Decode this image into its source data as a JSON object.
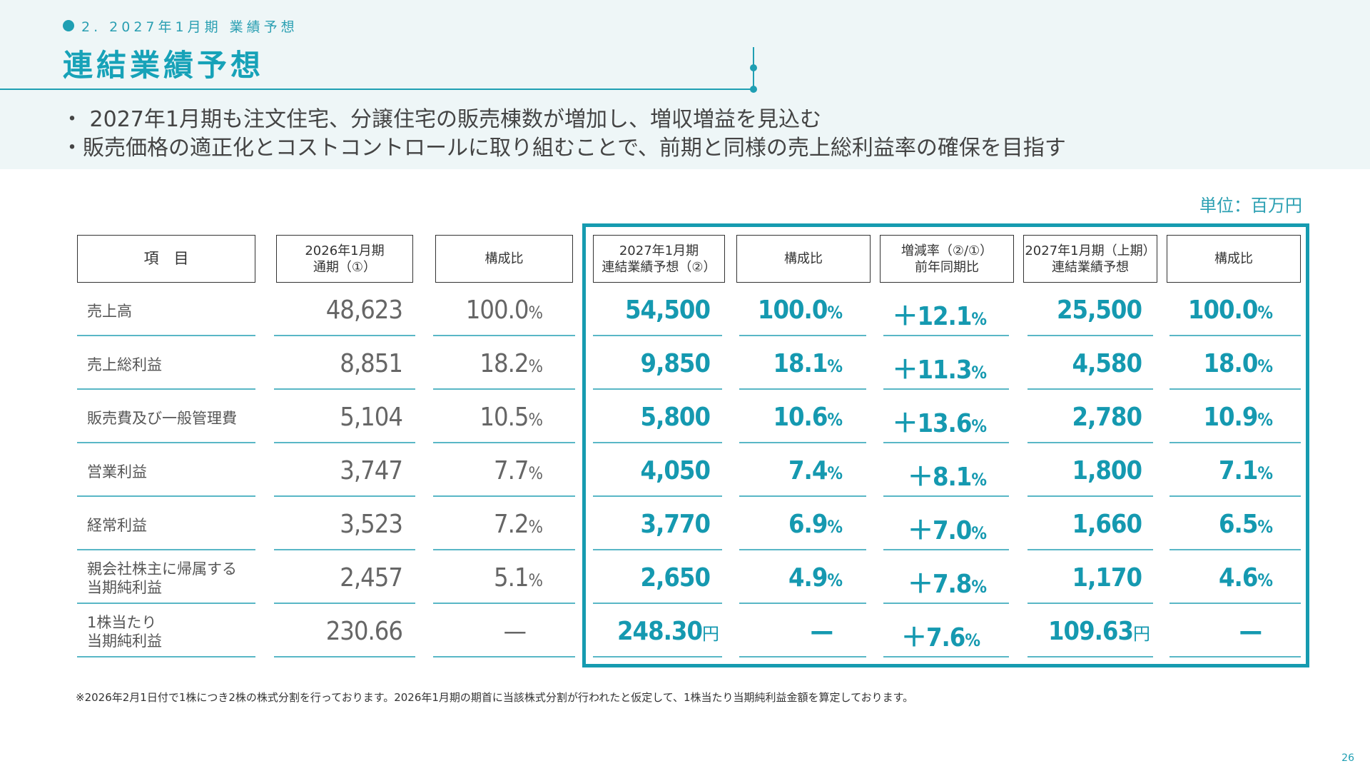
{
  "section_label": "2. 2027年1月期 業績予想",
  "page_title": "連結業績予想",
  "bullets": [
    "・ 2027年1月期も注文住宅、分譲住宅の販売棟数が増加し、増収増益を見込む",
    "・販売価格の適正化とコストコントロールに取り組むことで、前期と同様の売上総利益率の確保を目指す"
  ],
  "unit": "単位：百万円",
  "headers": {
    "item": "項　目",
    "fy2026_l1": "2026年1月期",
    "fy2026_l2": "通期（①）",
    "ratio": "構成比",
    "fy2027_l1": "2027年1月期",
    "fy2027_l2": "連結業績予想（②）",
    "growth_l1": "増減率（②/①）",
    "growth_l2": "前年同期比",
    "h1_l1": "2027年1月期（上期）",
    "h1_l2": "連結業績予想"
  },
  "rows": [
    {
      "item_l1": "売上高",
      "item_l2": "",
      "fy2026": "48,623",
      "fy2026_ratio": "100.0",
      "fy2027": "54,500",
      "fy2027_ratio": "100.0",
      "growth": "＋12.1",
      "h1": "25,500",
      "h1_ratio": "100.0"
    },
    {
      "item_l1": "売上総利益",
      "item_l2": "",
      "fy2026": "8,851",
      "fy2026_ratio": "18.2",
      "fy2027": "9,850",
      "fy2027_ratio": "18.1",
      "growth": "＋11.3",
      "h1": "4,580",
      "h1_ratio": "18.0"
    },
    {
      "item_l1": "販売費及び一般管理費",
      "item_l2": "",
      "fy2026": "5,104",
      "fy2026_ratio": "10.5",
      "fy2027": "5,800",
      "fy2027_ratio": "10.6",
      "growth": "＋13.6",
      "h1": "2,780",
      "h1_ratio": "10.9"
    },
    {
      "item_l1": "営業利益",
      "item_l2": "",
      "fy2026": "3,747",
      "fy2026_ratio": "7.7",
      "fy2027": "4,050",
      "fy2027_ratio": "7.4",
      "growth": "＋8.1",
      "h1": "1,800",
      "h1_ratio": "7.1"
    },
    {
      "item_l1": "経常利益",
      "item_l2": "",
      "fy2026": "3,523",
      "fy2026_ratio": "7.2",
      "fy2027": "3,770",
      "fy2027_ratio": "6.9",
      "growth": "＋7.0",
      "h1": "1,660",
      "h1_ratio": "6.5"
    },
    {
      "item_l1": "親会社株主に帰属する",
      "item_l2": "当期純利益",
      "fy2026": "2,457",
      "fy2026_ratio": "5.1",
      "fy2027": "2,650",
      "fy2027_ratio": "4.9",
      "growth": "＋7.8",
      "h1": "1,170",
      "h1_ratio": "4.6"
    }
  ],
  "eps_row": {
    "item_l1": "1株当たり",
    "item_l2": "当期純利益",
    "fy2026": "230.66",
    "fy2026_ratio": "—",
    "fy2027": "248.30",
    "fy2027_ratio": "—",
    "growth": "＋7.6",
    "h1": "109.63",
    "h1_ratio": "—"
  },
  "percent_sign": "%",
  "yen_sign": "円",
  "footnote": "※2026年2月1日付で1株につき2株の株式分割を行っております。2026年1月期の期首に当該株式分割が行われたと仮定して、1株当たり当期純利益金額を算定しております。",
  "page_number": "26"
}
